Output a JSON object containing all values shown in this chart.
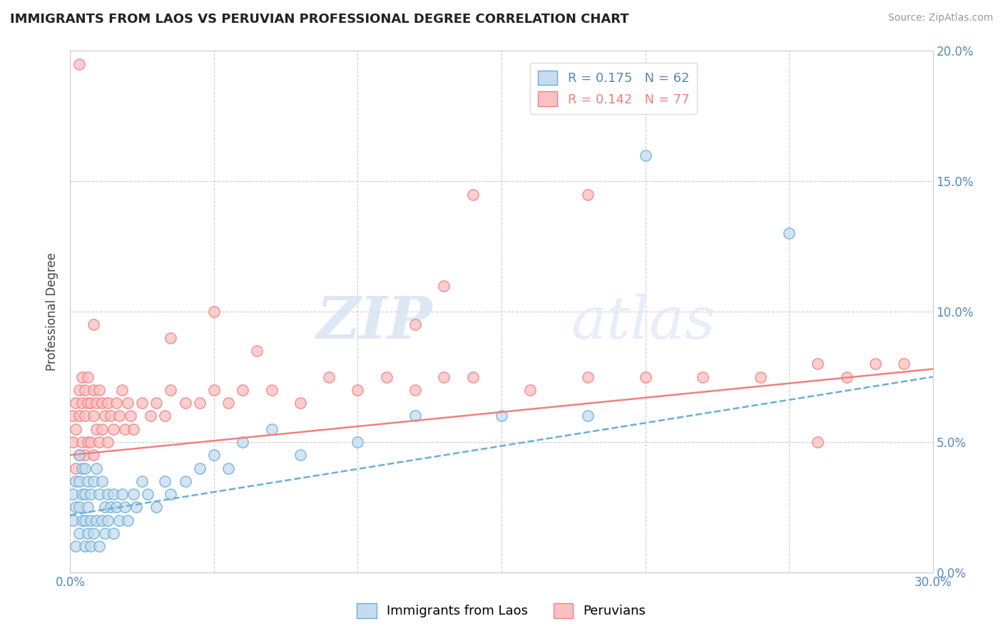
{
  "title": "IMMIGRANTS FROM LAOS VS PERUVIAN PROFESSIONAL DEGREE CORRELATION CHART",
  "source": "Source: ZipAtlas.com",
  "ylabel": "Professional Degree",
  "blue_R": 0.175,
  "blue_N": 62,
  "pink_R": 0.142,
  "pink_N": 77,
  "xlim": [
    0.0,
    0.3
  ],
  "ylim": [
    0.0,
    0.2
  ],
  "y_ticks": [
    0.0,
    0.05,
    0.1,
    0.15,
    0.2
  ],
  "watermark_zip": "ZIP",
  "watermark_atlas": "atlas",
  "blue_color": "#6baed6",
  "blue_face": "#c6dbef",
  "pink_color": "#f08080",
  "pink_face": "#fcc0c0",
  "blue_scatter_x": [
    0.001,
    0.001,
    0.002,
    0.002,
    0.002,
    0.003,
    0.003,
    0.003,
    0.003,
    0.004,
    0.004,
    0.004,
    0.005,
    0.005,
    0.005,
    0.005,
    0.006,
    0.006,
    0.006,
    0.007,
    0.007,
    0.007,
    0.008,
    0.008,
    0.009,
    0.009,
    0.01,
    0.01,
    0.011,
    0.011,
    0.012,
    0.012,
    0.013,
    0.013,
    0.014,
    0.015,
    0.015,
    0.016,
    0.017,
    0.018,
    0.019,
    0.02,
    0.022,
    0.023,
    0.025,
    0.027,
    0.03,
    0.033,
    0.035,
    0.04,
    0.045,
    0.05,
    0.055,
    0.06,
    0.07,
    0.08,
    0.1,
    0.12,
    0.15,
    0.18,
    0.2,
    0.25
  ],
  "blue_scatter_y": [
    0.02,
    0.03,
    0.01,
    0.025,
    0.035,
    0.015,
    0.025,
    0.035,
    0.045,
    0.02,
    0.03,
    0.04,
    0.01,
    0.02,
    0.03,
    0.04,
    0.015,
    0.025,
    0.035,
    0.01,
    0.02,
    0.03,
    0.015,
    0.035,
    0.02,
    0.04,
    0.01,
    0.03,
    0.02,
    0.035,
    0.015,
    0.025,
    0.02,
    0.03,
    0.025,
    0.015,
    0.03,
    0.025,
    0.02,
    0.03,
    0.025,
    0.02,
    0.03,
    0.025,
    0.035,
    0.03,
    0.025,
    0.035,
    0.03,
    0.035,
    0.04,
    0.045,
    0.04,
    0.05,
    0.055,
    0.045,
    0.05,
    0.06,
    0.06,
    0.06,
    0.16,
    0.13
  ],
  "pink_scatter_x": [
    0.001,
    0.001,
    0.002,
    0.002,
    0.002,
    0.003,
    0.003,
    0.003,
    0.004,
    0.004,
    0.004,
    0.005,
    0.005,
    0.005,
    0.006,
    0.006,
    0.006,
    0.007,
    0.007,
    0.008,
    0.008,
    0.008,
    0.009,
    0.009,
    0.01,
    0.01,
    0.011,
    0.011,
    0.012,
    0.013,
    0.013,
    0.014,
    0.015,
    0.016,
    0.017,
    0.018,
    0.019,
    0.02,
    0.021,
    0.022,
    0.025,
    0.028,
    0.03,
    0.033,
    0.035,
    0.04,
    0.045,
    0.05,
    0.055,
    0.06,
    0.07,
    0.08,
    0.09,
    0.1,
    0.11,
    0.12,
    0.13,
    0.14,
    0.16,
    0.18,
    0.2,
    0.22,
    0.24,
    0.26,
    0.27,
    0.28,
    0.003,
    0.05,
    0.13,
    0.18,
    0.26,
    0.14,
    0.008,
    0.12,
    0.29,
    0.035,
    0.065
  ],
  "pink_scatter_y": [
    0.05,
    0.06,
    0.04,
    0.055,
    0.065,
    0.045,
    0.06,
    0.07,
    0.05,
    0.065,
    0.075,
    0.045,
    0.06,
    0.07,
    0.05,
    0.065,
    0.075,
    0.05,
    0.065,
    0.045,
    0.06,
    0.07,
    0.055,
    0.065,
    0.05,
    0.07,
    0.055,
    0.065,
    0.06,
    0.05,
    0.065,
    0.06,
    0.055,
    0.065,
    0.06,
    0.07,
    0.055,
    0.065,
    0.06,
    0.055,
    0.065,
    0.06,
    0.065,
    0.06,
    0.07,
    0.065,
    0.065,
    0.07,
    0.065,
    0.07,
    0.07,
    0.065,
    0.075,
    0.07,
    0.075,
    0.07,
    0.075,
    0.075,
    0.07,
    0.075,
    0.075,
    0.075,
    0.075,
    0.08,
    0.075,
    0.08,
    0.195,
    0.1,
    0.11,
    0.145,
    0.05,
    0.145,
    0.095,
    0.095,
    0.08,
    0.09,
    0.085
  ],
  "blue_trend_x": [
    0.0,
    0.3
  ],
  "blue_trend_y": [
    0.022,
    0.075
  ],
  "pink_trend_x": [
    0.0,
    0.3
  ],
  "pink_trend_y": [
    0.045,
    0.078
  ]
}
